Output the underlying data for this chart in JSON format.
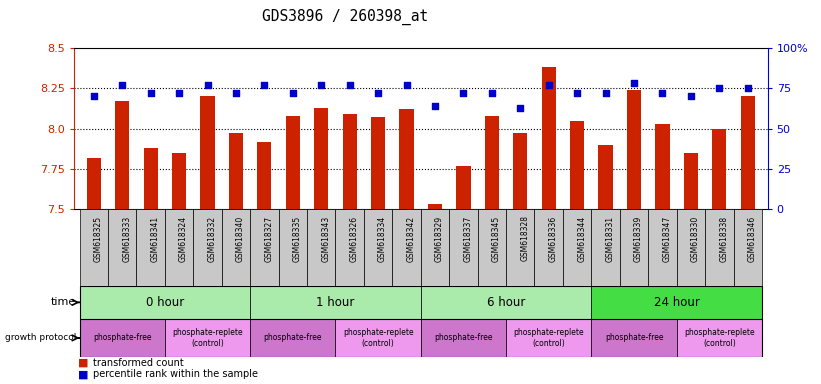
{
  "title": "GDS3896 / 260398_at",
  "samples": [
    "GSM618325",
    "GSM618333",
    "GSM618341",
    "GSM618324",
    "GSM618332",
    "GSM618340",
    "GSM618327",
    "GSM618335",
    "GSM618343",
    "GSM618326",
    "GSM618334",
    "GSM618342",
    "GSM618329",
    "GSM618337",
    "GSM618345",
    "GSM618328",
    "GSM618336",
    "GSM618344",
    "GSM618331",
    "GSM618339",
    "GSM618347",
    "GSM618330",
    "GSM618338",
    "GSM618346"
  ],
  "transformed_count": [
    7.82,
    8.17,
    7.88,
    7.85,
    8.2,
    7.97,
    7.92,
    8.08,
    8.13,
    8.09,
    8.07,
    8.12,
    7.53,
    7.77,
    8.08,
    7.97,
    8.38,
    8.05,
    7.9,
    8.24,
    8.03,
    7.85,
    8.0,
    8.2
  ],
  "percentile_rank": [
    70,
    77,
    72,
    72,
    77,
    72,
    77,
    72,
    77,
    77,
    72,
    77,
    64,
    72,
    72,
    63,
    77,
    72,
    72,
    78,
    72,
    70,
    75,
    75
  ],
  "ylim_left": [
    7.5,
    8.5
  ],
  "ylim_right": [
    0,
    100
  ],
  "yticks_left": [
    7.5,
    7.75,
    8.0,
    8.25,
    8.5
  ],
  "yticks_right": [
    0,
    25,
    50,
    75,
    100
  ],
  "ytick_labels_right": [
    "0",
    "25",
    "50",
    "75",
    "100%"
  ],
  "hlines": [
    7.75,
    8.0,
    8.25
  ],
  "time_groups": [
    {
      "label": "0 hour",
      "start": 0,
      "end": 6,
      "color": "#AAEAAA"
    },
    {
      "label": "1 hour",
      "start": 6,
      "end": 12,
      "color": "#AAEAAA"
    },
    {
      "label": "6 hour",
      "start": 12,
      "end": 18,
      "color": "#AAEAAA"
    },
    {
      "label": "24 hour",
      "start": 18,
      "end": 24,
      "color": "#44DD44"
    }
  ],
  "protocol_groups": [
    {
      "label": "phosphate-free",
      "start": 0,
      "end": 3,
      "color": "#CC77CC"
    },
    {
      "label": "phosphate-replete\n(control)",
      "start": 3,
      "end": 6,
      "color": "#EE99EE"
    },
    {
      "label": "phosphate-free",
      "start": 6,
      "end": 9,
      "color": "#CC77CC"
    },
    {
      "label": "phosphate-replete\n(control)",
      "start": 9,
      "end": 12,
      "color": "#EE99EE"
    },
    {
      "label": "phosphate-free",
      "start": 12,
      "end": 15,
      "color": "#CC77CC"
    },
    {
      "label": "phosphate-replete\n(control)",
      "start": 15,
      "end": 18,
      "color": "#EE99EE"
    },
    {
      "label": "phosphate-free",
      "start": 18,
      "end": 21,
      "color": "#CC77CC"
    },
    {
      "label": "phosphate-replete\n(control)",
      "start": 21,
      "end": 24,
      "color": "#EE99EE"
    }
  ],
  "bar_color": "#CC2200",
  "dot_color": "#0000CC",
  "axis_color_left": "#CC2200",
  "axis_color_right": "#0000CC",
  "tick_area_color": "#C8C8C8"
}
